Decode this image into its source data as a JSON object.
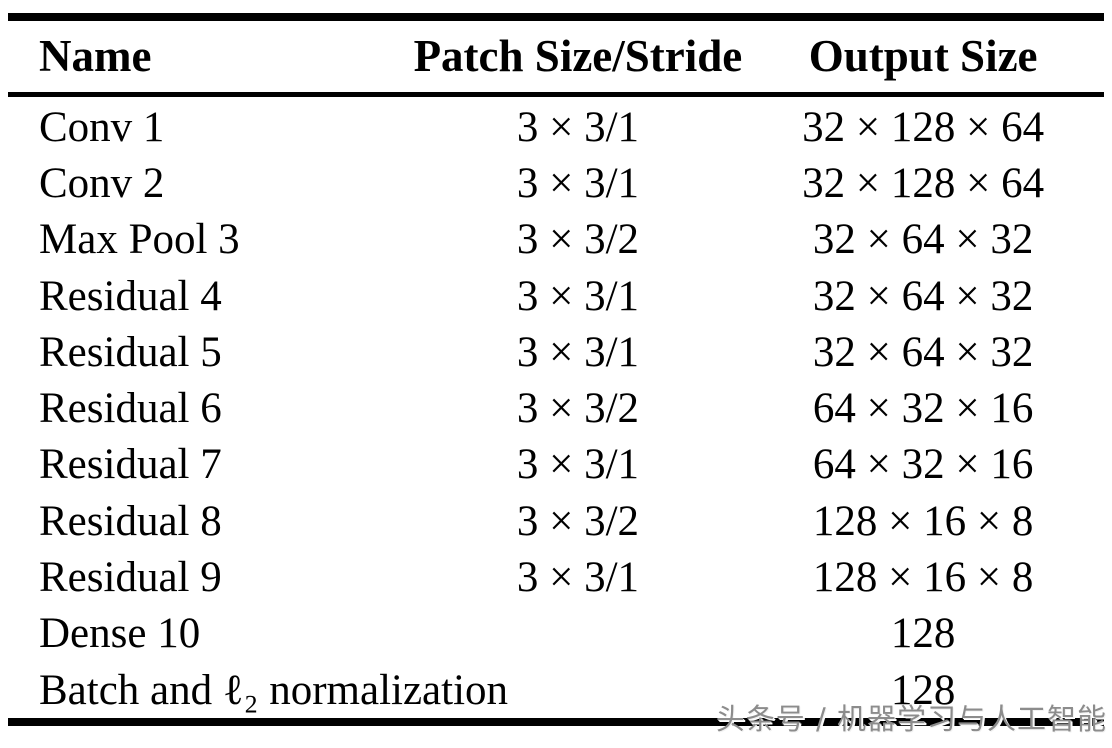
{
  "colors": {
    "background": "#ffffff",
    "rule": "#000000",
    "text": "#000000",
    "watermark": "#8c8c8c"
  },
  "table": {
    "columns": [
      {
        "key": "name",
        "label": "Name"
      },
      {
        "key": "patch",
        "label": "Patch Size/Stride"
      },
      {
        "key": "output",
        "label": "Output Size"
      }
    ],
    "rows": [
      {
        "name": "Conv 1",
        "patch": "3 × 3/1",
        "output": "32 × 128 × 64"
      },
      {
        "name": "Conv 2",
        "patch": "3 × 3/1",
        "output": "32 × 128 × 64"
      },
      {
        "name": "Max Pool 3",
        "patch": "3 × 3/2",
        "output": "32 × 64 × 32"
      },
      {
        "name": "Residual 4",
        "patch": "3 × 3/1",
        "output": "32 × 64 × 32"
      },
      {
        "name": "Residual 5",
        "patch": "3 × 3/1",
        "output": "32 × 64 × 32"
      },
      {
        "name": "Residual 6",
        "patch": "3 × 3/2",
        "output": "64 × 32 × 16"
      },
      {
        "name": "Residual 7",
        "patch": "3 × 3/1",
        "output": "64 × 32 × 16"
      },
      {
        "name": "Residual 8",
        "patch": "3 × 3/2",
        "output": "128 × 16 × 8"
      },
      {
        "name": "Residual 9",
        "patch": "3 × 3/1",
        "output": "128 × 16 × 8"
      },
      {
        "name": "Dense 10",
        "patch": "",
        "output": "128"
      },
      {
        "name": "Batch and ℓ₂ normalization",
        "patch": "",
        "output": "128"
      }
    ]
  },
  "watermark": {
    "text": "头条号 / 机器学习与人工智能"
  }
}
